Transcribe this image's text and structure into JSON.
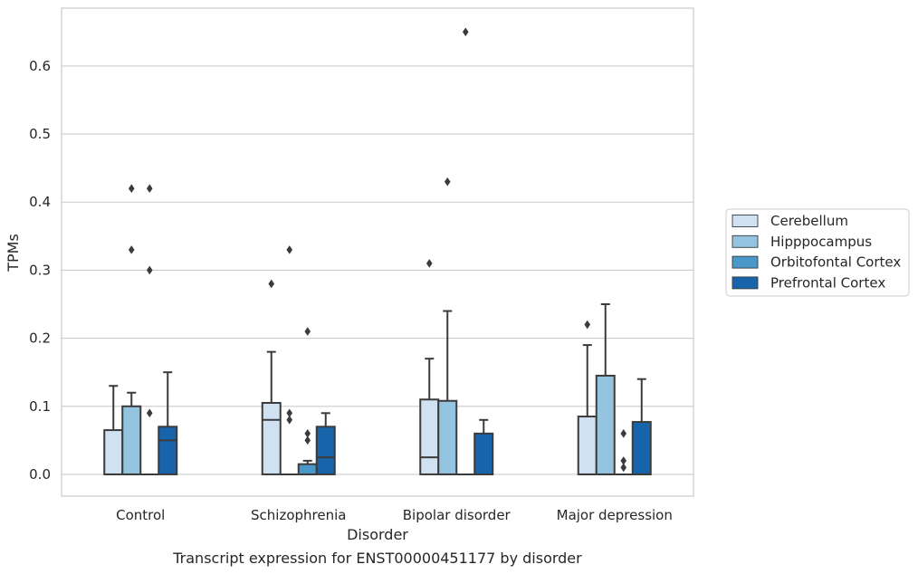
{
  "chart_data": {
    "type": "box",
    "caption": "Transcript expression for ENST00000451177 by disorder",
    "xlabel": "Disorder",
    "ylabel": "TPMs",
    "ylim": [
      -0.032,
      0.685
    ],
    "yticks": [
      0.0,
      0.1,
      0.2,
      0.3,
      0.4,
      0.5,
      0.6
    ],
    "ytick_labels": [
      "0.0",
      "0.1",
      "0.2",
      "0.3",
      "0.4",
      "0.5",
      "0.6"
    ],
    "grid": "horizontal",
    "legend_position": "right",
    "categories": [
      "Control",
      "Schizophrenia",
      "Bipolar disorder",
      "Major depression"
    ],
    "series": [
      {
        "name": "Cerebellum",
        "color": "#d0e1f2",
        "boxes": [
          {
            "q1": 0.0,
            "median": 0.0,
            "q3": 0.065,
            "whisker_low": 0.0,
            "whisker_high": 0.13,
            "outliers": []
          },
          {
            "q1": 0.0,
            "median": 0.08,
            "q3": 0.105,
            "whisker_low": 0.0,
            "whisker_high": 0.18,
            "outliers": [
              0.28
            ]
          },
          {
            "q1": 0.0,
            "median": 0.025,
            "q3": 0.11,
            "whisker_low": 0.0,
            "whisker_high": 0.17,
            "outliers": [
              0.31
            ]
          },
          {
            "q1": 0.0,
            "median": 0.0,
            "q3": 0.085,
            "whisker_low": 0.0,
            "whisker_high": 0.19,
            "outliers": [
              0.22
            ]
          }
        ]
      },
      {
        "name": "Hipppocampus",
        "color": "#94c4df",
        "boxes": [
          {
            "q1": 0.0,
            "median": 0.0,
            "q3": 0.1,
            "whisker_low": 0.0,
            "whisker_high": 0.12,
            "outliers": [
              0.33,
              0.42
            ]
          },
          {
            "q1": 0.0,
            "median": 0.0,
            "q3": 0.0,
            "whisker_low": 0.0,
            "whisker_high": 0.0,
            "outliers": [
              0.08,
              0.09,
              0.33
            ]
          },
          {
            "q1": 0.0,
            "median": 0.0,
            "q3": 0.108,
            "whisker_low": 0.0,
            "whisker_high": 0.24,
            "outliers": [
              0.43
            ]
          },
          {
            "q1": 0.0,
            "median": 0.0,
            "q3": 0.145,
            "whisker_low": 0.0,
            "whisker_high": 0.25,
            "outliers": []
          }
        ]
      },
      {
        "name": "Orbitofontal Cortex",
        "color": "#4a98c9",
        "boxes": [
          {
            "q1": 0.0,
            "median": 0.0,
            "q3": 0.0,
            "whisker_low": 0.0,
            "whisker_high": 0.0,
            "outliers": [
              0.09,
              0.3,
              0.42
            ]
          },
          {
            "q1": 0.0,
            "median": 0.0,
            "q3": 0.015,
            "whisker_low": 0.0,
            "whisker_high": 0.02,
            "outliers": [
              0.05,
              0.06,
              0.21
            ]
          },
          {
            "q1": 0.0,
            "median": 0.0,
            "q3": 0.0,
            "whisker_low": 0.0,
            "whisker_high": 0.0,
            "outliers": [
              0.65
            ]
          },
          {
            "q1": 0.0,
            "median": 0.0,
            "q3": 0.0,
            "whisker_low": 0.0,
            "whisker_high": 0.0,
            "outliers": [
              0.01,
              0.02,
              0.06
            ]
          }
        ]
      },
      {
        "name": "Prefrontal Cortex",
        "color": "#1764ab",
        "boxes": [
          {
            "q1": 0.0,
            "median": 0.05,
            "q3": 0.07,
            "whisker_low": 0.0,
            "whisker_high": 0.15,
            "outliers": []
          },
          {
            "q1": 0.0,
            "median": 0.025,
            "q3": 0.07,
            "whisker_low": 0.0,
            "whisker_high": 0.09,
            "outliers": []
          },
          {
            "q1": 0.0,
            "median": 0.0,
            "q3": 0.06,
            "whisker_low": 0.0,
            "whisker_high": 0.08,
            "outliers": []
          },
          {
            "q1": 0.0,
            "median": 0.0,
            "q3": 0.077,
            "whisker_low": 0.0,
            "whisker_high": 0.14,
            "outliers": []
          }
        ]
      }
    ],
    "colors": {
      "grid": "#cccccc",
      "frame": "#cccccc",
      "stroke": "#3b3b3b",
      "text": "#262626"
    }
  }
}
